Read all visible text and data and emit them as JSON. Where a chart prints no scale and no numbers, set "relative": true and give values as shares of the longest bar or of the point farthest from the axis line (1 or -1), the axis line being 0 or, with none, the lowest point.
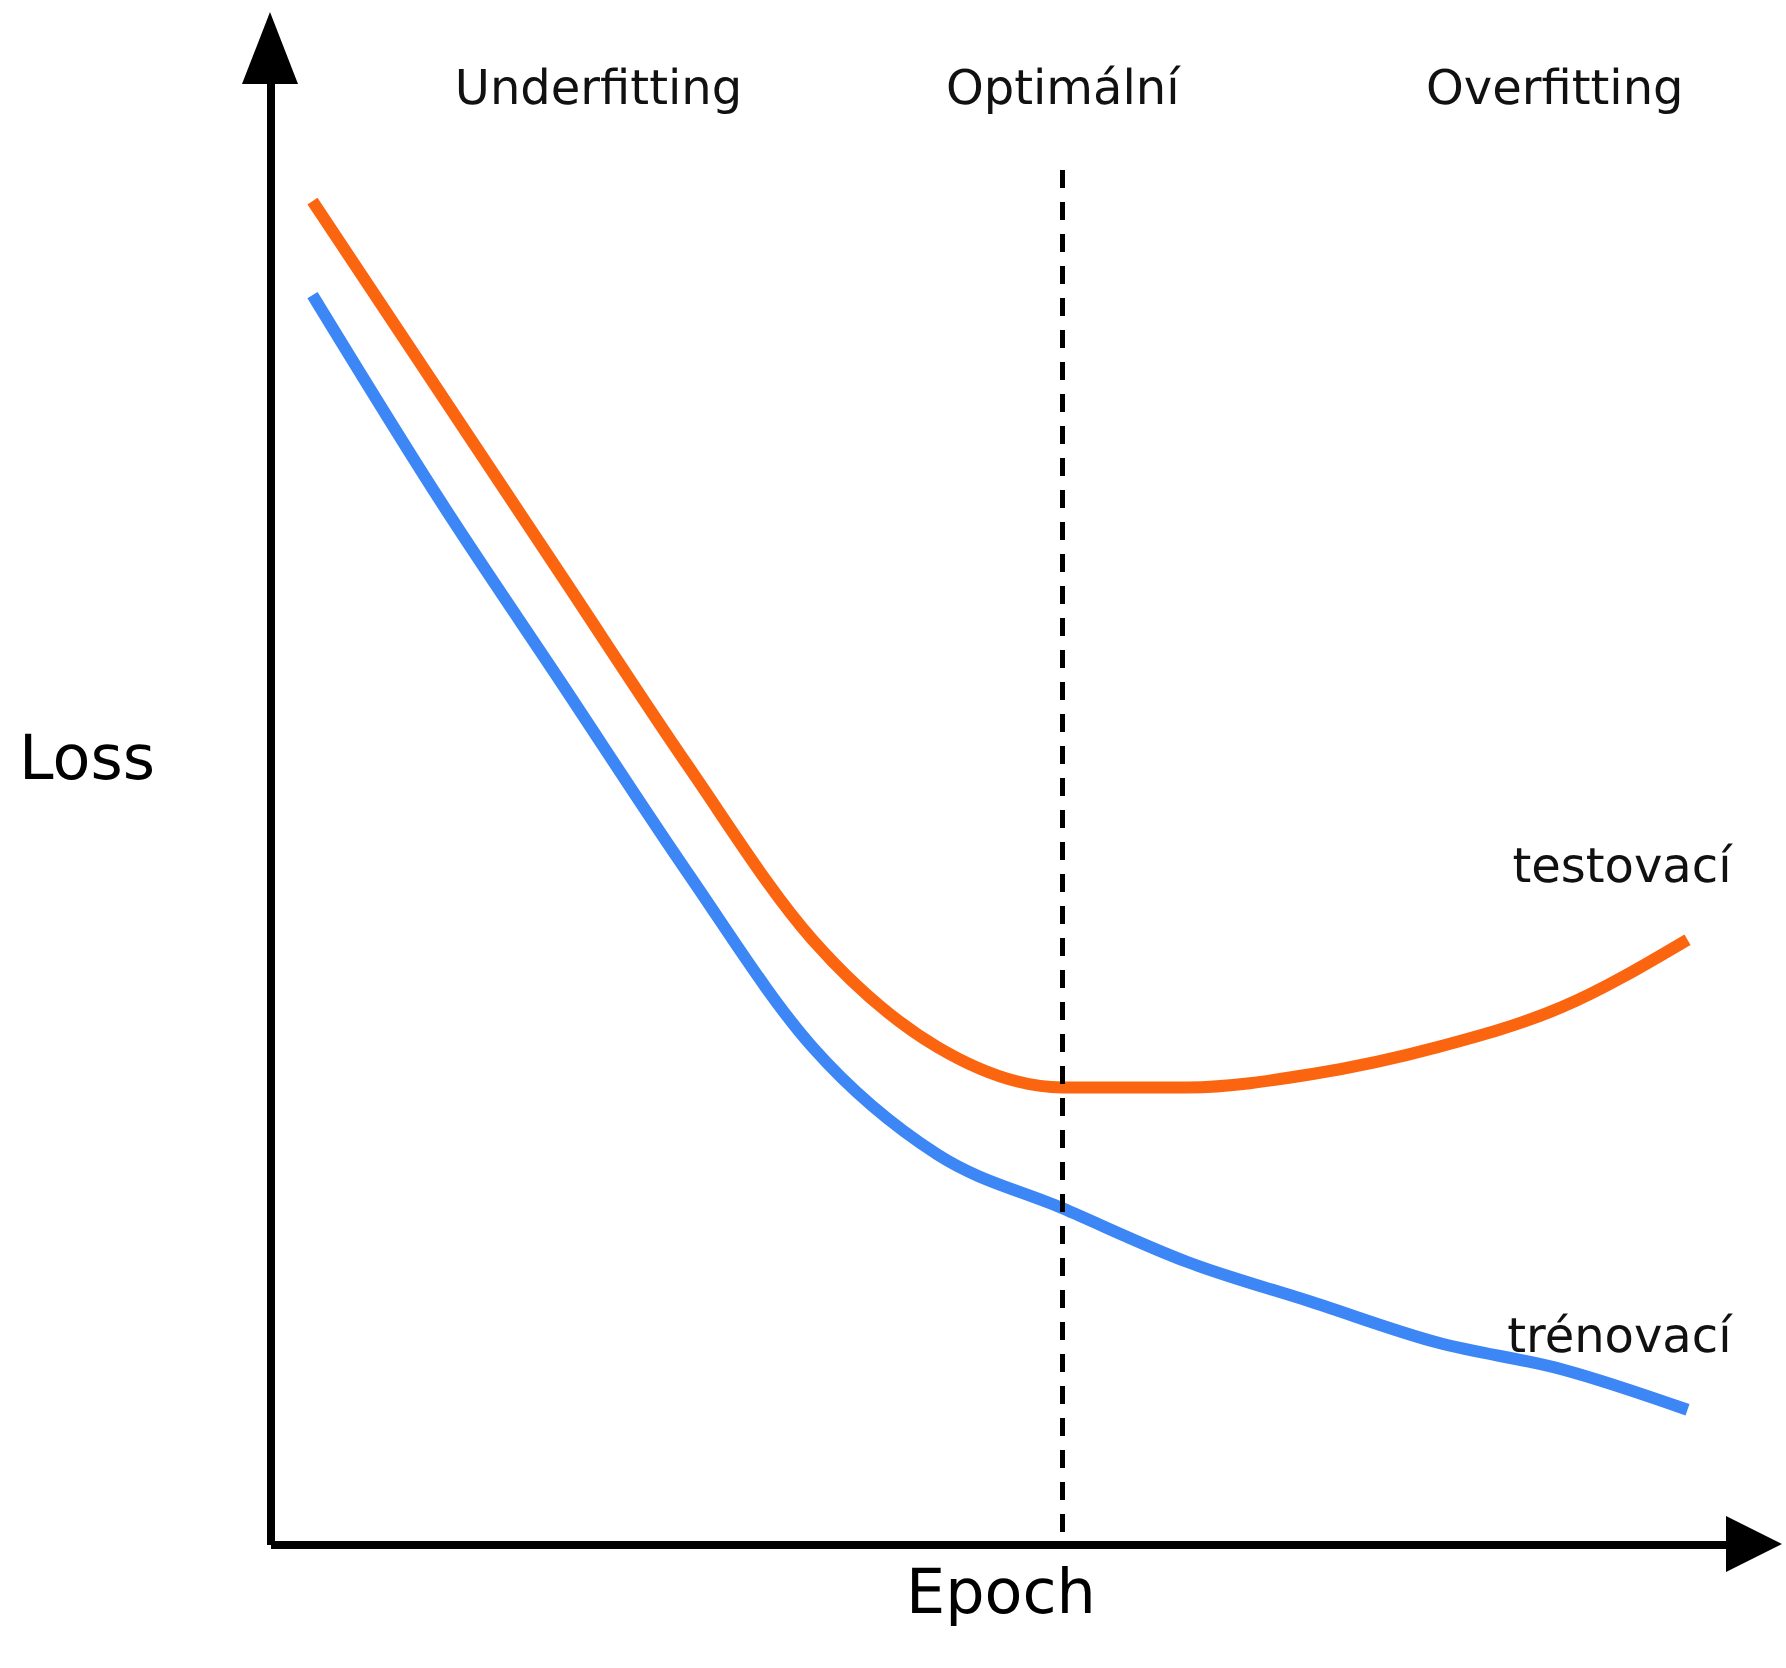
{
  "chart_data": {
    "type": "line",
    "relative": true,
    "xlabel": "Epoch",
    "ylabel": "Loss",
    "tick_labels": false,
    "grid": false,
    "legend": false,
    "line_style": "solid",
    "marker": "none",
    "categories": [
      null,
      null,
      null,
      null,
      null,
      null,
      null,
      null,
      null,
      null,
      null,
      null
    ],
    "series": [
      {
        "name": "testovací",
        "color": "#fc6510",
        "values": [
          1.0,
          0.86,
          0.72,
          0.58,
          0.45,
          0.37,
          0.34,
          0.34,
          0.35,
          0.37,
          0.4,
          0.45
        ]
      },
      {
        "name": "trénovací",
        "color": "#3d86f5",
        "values": [
          0.93,
          0.78,
          0.64,
          0.5,
          0.37,
          0.29,
          0.25,
          0.21,
          0.18,
          0.15,
          0.13,
          0.1
        ]
      }
    ],
    "annotations": [
      "Underfitting",
      "Optimální",
      "Overfitting"
    ]
  }
}
